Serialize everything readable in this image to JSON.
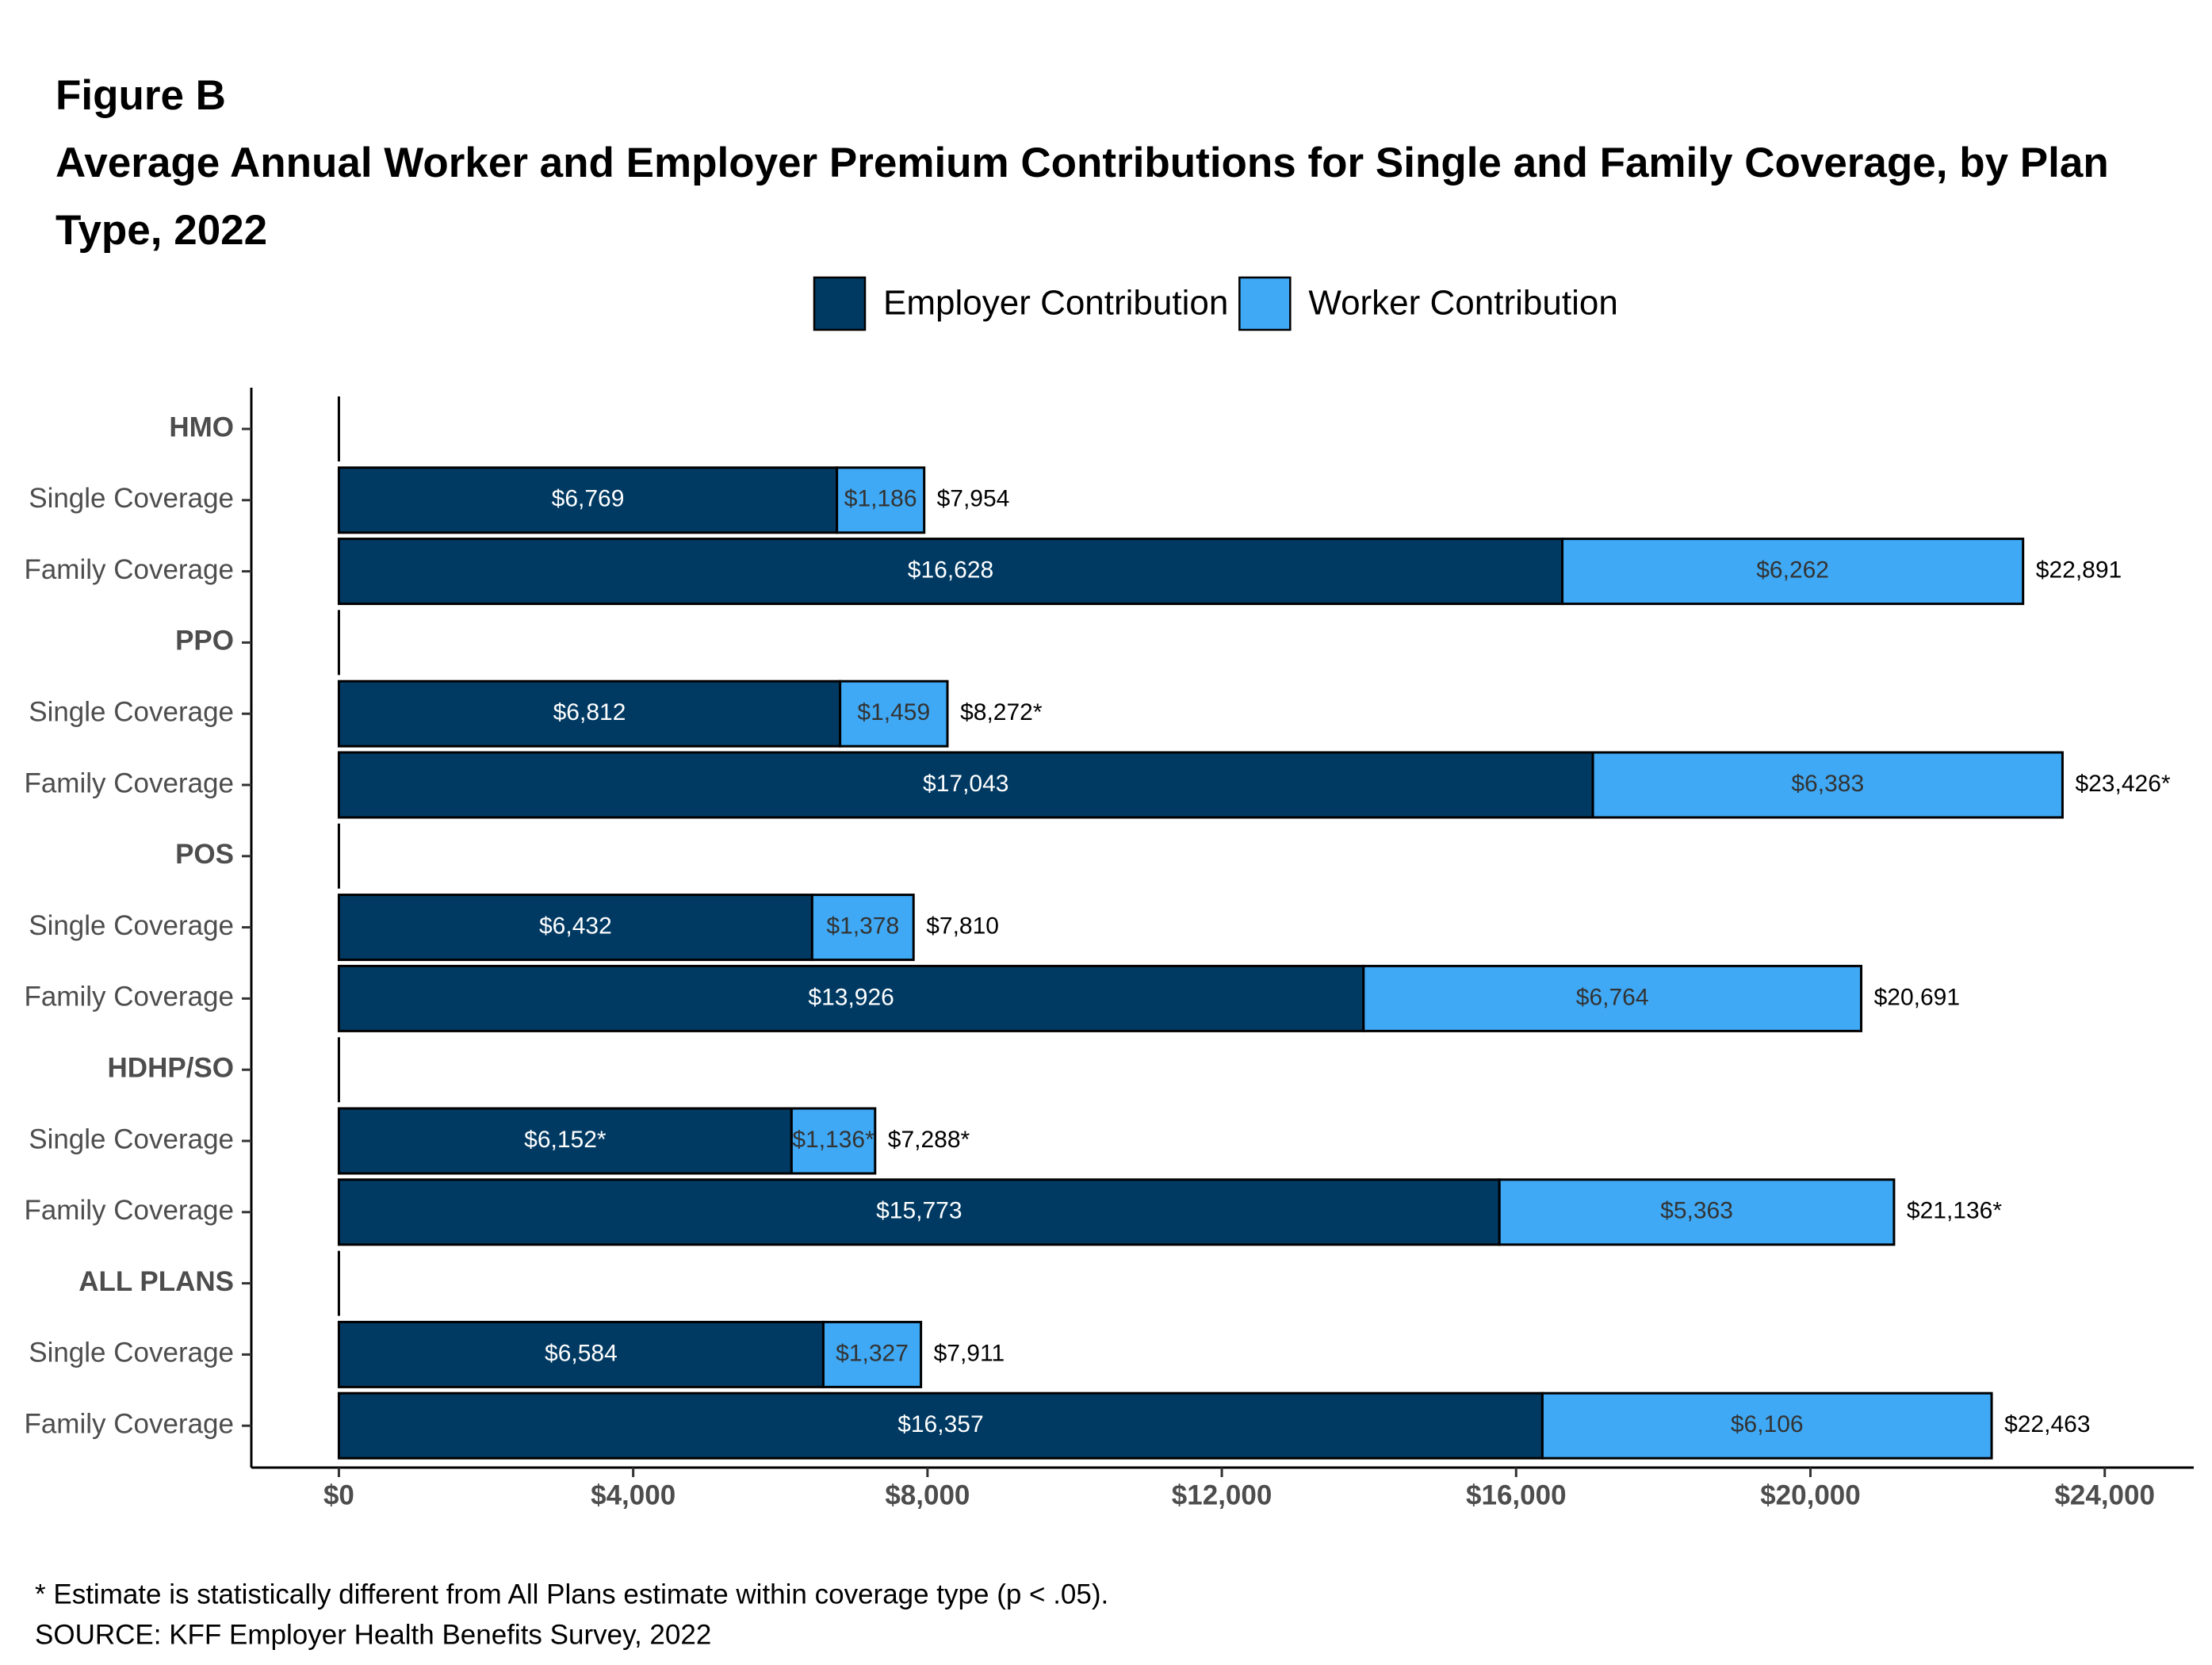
{
  "chart_data": {
    "type": "stacked-bar-horizontal",
    "label": "Figure B",
    "title": "Average Annual Worker and Employer Premium Contributions for Single and Family Coverage, by Plan Type, 2022",
    "legend": "top",
    "groups": [
      {
        "label": "HMO",
        "categories": [
          "Single Coverage",
          "Family Coverage"
        ]
      },
      {
        "label": "PPO",
        "categories": [
          "Single Coverage",
          "Family Coverage"
        ]
      },
      {
        "label": "POS",
        "categories": [
          "Single Coverage",
          "Family Coverage"
        ]
      },
      {
        "label": "HDHP/SO",
        "categories": [
          "Single Coverage",
          "Family Coverage"
        ]
      },
      {
        "label": "ALL PLANS",
        "categories": [
          "Single Coverage",
          "Family Coverage"
        ]
      }
    ],
    "series": [
      {
        "name": "Employer Contribution",
        "color": "#003a63",
        "label_color": "#ffffff",
        "values": [
          6769,
          16628,
          6812,
          17043,
          6432,
          13926,
          6152,
          15773,
          6584,
          16357
        ],
        "value_labels": [
          "$6,769",
          "$16,628",
          "$6,812",
          "$17,043",
          "$6,432",
          "$13,926",
          "$6,152*",
          "$15,773",
          "$6,584",
          "$16,357"
        ]
      },
      {
        "name": "Worker Contribution",
        "color": "#3fa9f5",
        "label_color": "#333333",
        "values": [
          1186,
          6262,
          1459,
          6383,
          1378,
          6764,
          1136,
          5363,
          1327,
          6106
        ],
        "value_labels": [
          "$1,186",
          "$6,262",
          "$1,459",
          "$6,383",
          "$1,378",
          "$6,764",
          "$1,136*",
          "$5,363",
          "$1,327",
          "$6,106"
        ]
      }
    ],
    "totals": {
      "values": [
        7954,
        22891,
        8272,
        23426,
        7810,
        20691,
        7288,
        21136,
        7911,
        22463
      ],
      "value_labels": [
        "$7,954",
        "$22,891",
        "$8,272*",
        "$23,426*",
        "$7,810",
        "$20,691",
        "$7,288*",
        "$21,136*",
        "$7,911",
        "$22,463"
      ]
    },
    "xlim": [
      -1190,
      25210
    ],
    "xticks": [
      {
        "value": 0,
        "label": "$0"
      },
      {
        "value": 4000,
        "label": "$4,000"
      },
      {
        "value": 8000,
        "label": "$8,000"
      },
      {
        "value": 12000,
        "label": "$12,000"
      },
      {
        "value": 16000,
        "label": "$16,000"
      },
      {
        "value": 20000,
        "label": "$20,000"
      },
      {
        "value": 24000,
        "label": "$24,000"
      }
    ],
    "notes": [
      "* Estimate is statistically different from All Plans estimate within coverage type (p < .05).",
      "SOURCE: KFF Employer Health Benefits Survey, 2022"
    ]
  }
}
